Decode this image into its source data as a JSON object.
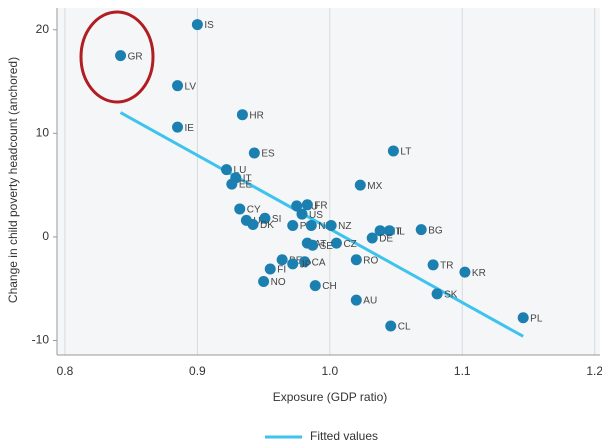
{
  "chart_data": {
    "type": "scatter",
    "x_label": "Exposure (GDP ratio)",
    "y_label": "Change in child poverty headcount (anchored)",
    "xlim": [
      0.794,
      1.204
    ],
    "ylim": [
      -11.4,
      22.1
    ],
    "xticks": [
      0.8,
      0.9,
      {
        "value": 1,
        "label": "1.0"
      },
      1.1,
      1.2
    ],
    "yticks": [
      -10,
      0,
      10,
      20
    ],
    "grid": true,
    "points": {
      "color": "#1b7fb0",
      "labels": [
        "IS",
        "GR",
        "LV",
        "HR",
        "IE",
        "ES",
        "LT",
        "LU",
        "IT",
        "EE",
        "MX",
        "CY",
        "HU",
        "FR",
        "US",
        "UK",
        "SI",
        "DK",
        "PT",
        "NL",
        "NZ",
        "MT",
        "IL",
        "BG",
        "DE",
        "CZ",
        "AT",
        "SE",
        "BE",
        "CA",
        "RO",
        "JP",
        "FI",
        "NO",
        "CH",
        "TR",
        "KR",
        "SK",
        "AU",
        "CL",
        "PL"
      ],
      "x": [
        0.9,
        0.842,
        0.885,
        0.934,
        0.885,
        0.943,
        1.048,
        0.922,
        0.929,
        0.926,
        1.023,
        0.932,
        0.975,
        0.983,
        0.979,
        0.937,
        0.951,
        0.942,
        0.972,
        0.986,
        1.001,
        1.038,
        1.045,
        1.069,
        1.032,
        1.005,
        0.983,
        0.987,
        0.964,
        0.981,
        1.02,
        0.972,
        0.955,
        0.95,
        0.989,
        1.078,
        1.102,
        1.081,
        1.02,
        1.046,
        1.146
      ],
      "y": [
        20.5,
        17.5,
        14.6,
        11.8,
        10.6,
        8.1,
        8.3,
        6.5,
        5.7,
        5.1,
        5.0,
        2.7,
        3.0,
        3.1,
        2.2,
        1.6,
        1.8,
        1.2,
        1.1,
        1.1,
        1.1,
        0.6,
        0.6,
        0.7,
        -0.1,
        -0.6,
        -0.6,
        -0.8,
        -2.2,
        -2.4,
        -2.2,
        -2.6,
        -3.1,
        -4.3,
        -4.7,
        -2.7,
        -3.4,
        -5.5,
        -6.1,
        -8.6,
        -7.8
      ]
    },
    "fit": {
      "name": "Fitted values",
      "color": "#3ec3ee",
      "x": [
        0.842,
        1.146
      ],
      "y": [
        12.0,
        -9.6
      ]
    }
  }
}
